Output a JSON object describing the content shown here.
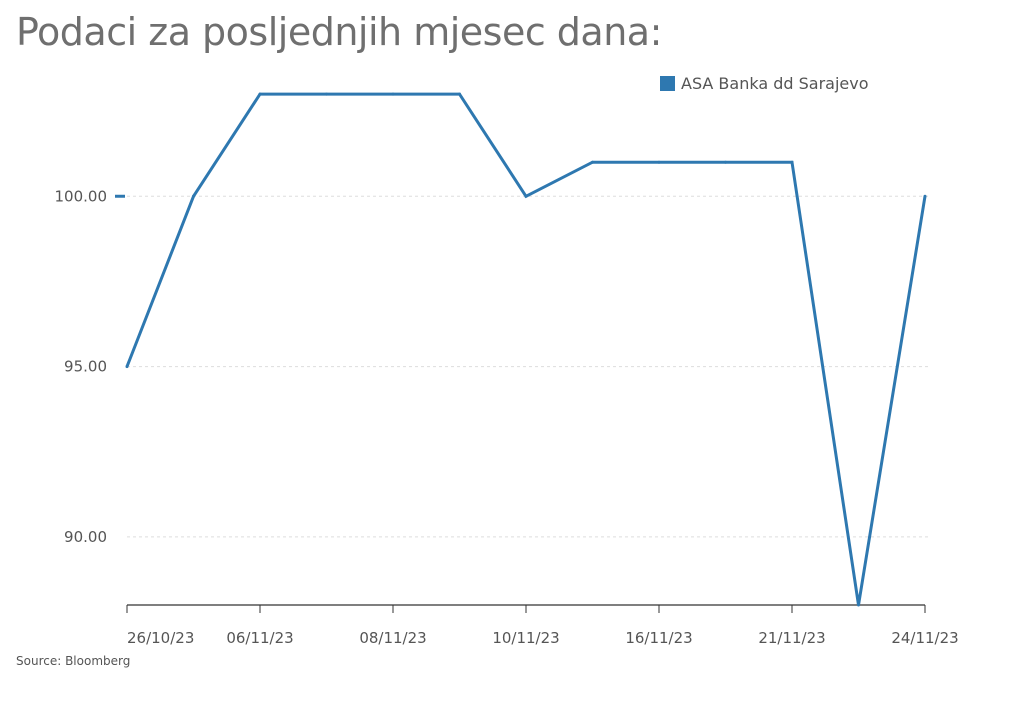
{
  "header": {
    "title": "Podaci za posljednjih mjesec dana:"
  },
  "footer": {
    "source": "Source: Bloomberg"
  },
  "colors": {
    "series": "#2e78b0",
    "grid": "#dddddd",
    "axis": "#333333",
    "text": "#555555",
    "title": "#6f6f6f"
  },
  "chart_data": {
    "type": "line",
    "title": "Podaci za posljednjih mjesec dana:",
    "xlabel": "",
    "ylabel": "",
    "x": [
      "26/10/23",
      "27/10/23",
      "06/11/23",
      "07/11/23",
      "08/11/23",
      "09/11/23",
      "10/11/23",
      "13/11/23",
      "16/11/23",
      "17/11/23",
      "21/11/23",
      "23/11/23",
      "24/11/23"
    ],
    "x_tick_labels": [
      "26/10/23",
      "06/11/23",
      "08/11/23",
      "10/11/23",
      "16/11/23",
      "21/11/23",
      "24/11/23"
    ],
    "series": [
      {
        "name": "ASA Banka dd Sarajevo",
        "values": [
          95,
          100,
          103,
          103,
          103,
          103,
          100,
          101,
          101,
          101,
          101,
          88,
          100
        ]
      }
    ],
    "y_ticks": [
      90,
      95,
      100
    ],
    "y_tick_labels": [
      "90.00",
      "95.00",
      "100.00"
    ],
    "ylim": [
      88,
      104
    ],
    "grid": true,
    "legend": "top-right"
  }
}
